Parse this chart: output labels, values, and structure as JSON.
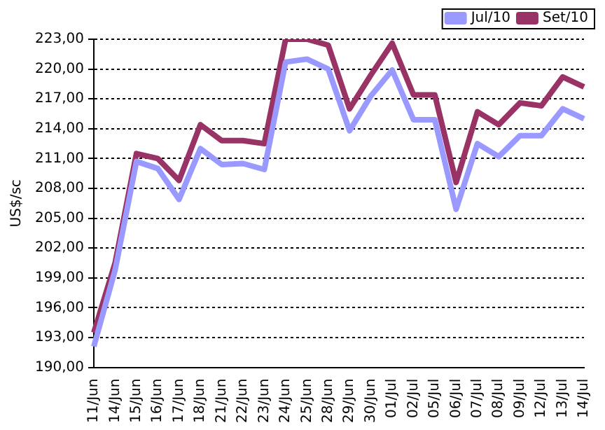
{
  "chart_data": {
    "type": "line",
    "ylabel": "US$/sc",
    "categories": [
      "11/Jun",
      "14/Jun",
      "15/Jun",
      "16/Jun",
      "17/Jun",
      "18/Jun",
      "21/Jun",
      "22/Jun",
      "23/Jun",
      "24/Jun",
      "25/Jun",
      "28/Jun",
      "29/Jun",
      "30/Jun",
      "01/Jul",
      "02/Jul",
      "05/Jul",
      "06/Jul",
      "07/Jul",
      "08/Jul",
      "09/Jul",
      "12/Jul",
      "13/Jul",
      "14/Jul"
    ],
    "series": [
      {
        "name": "Jul/10",
        "color": "#9999ff",
        "values": [
          192.1,
          199.8,
          210.7,
          210.0,
          206.9,
          212.0,
          210.4,
          210.5,
          209.9,
          220.7,
          221.0,
          220.0,
          213.8,
          217.3,
          219.9,
          214.9,
          214.9,
          205.9,
          212.5,
          211.2,
          213.3,
          213.3,
          216.0,
          215.0
        ]
      },
      {
        "name": "Set/10",
        "color": "#993366",
        "values": [
          193.5,
          200.5,
          211.5,
          211.0,
          208.8,
          214.4,
          212.8,
          212.8,
          212.5,
          223.0,
          223.0,
          222.4,
          216.0,
          219.4,
          222.6,
          217.4,
          217.4,
          208.6,
          215.7,
          214.4,
          216.6,
          216.3,
          219.2,
          218.2
        ]
      }
    ],
    "ylim": [
      190,
      223
    ],
    "yticks": [
      {
        "value": 190,
        "label": "190,00"
      },
      {
        "value": 193,
        "label": "193,00"
      },
      {
        "value": 196,
        "label": "196,00"
      },
      {
        "value": 199,
        "label": "199,00"
      },
      {
        "value": 202,
        "label": "202,00"
      },
      {
        "value": 205,
        "label": "205,00"
      },
      {
        "value": 208,
        "label": "208,00"
      },
      {
        "value": 211,
        "label": "211,00"
      },
      {
        "value": 214,
        "label": "214,00"
      },
      {
        "value": 217,
        "label": "217,00"
      },
      {
        "value": 220,
        "label": "220,00"
      },
      {
        "value": 223,
        "label": "223,00"
      }
    ],
    "grid": "y",
    "legend": "top right",
    "marker": "none",
    "line_style": "solid"
  }
}
